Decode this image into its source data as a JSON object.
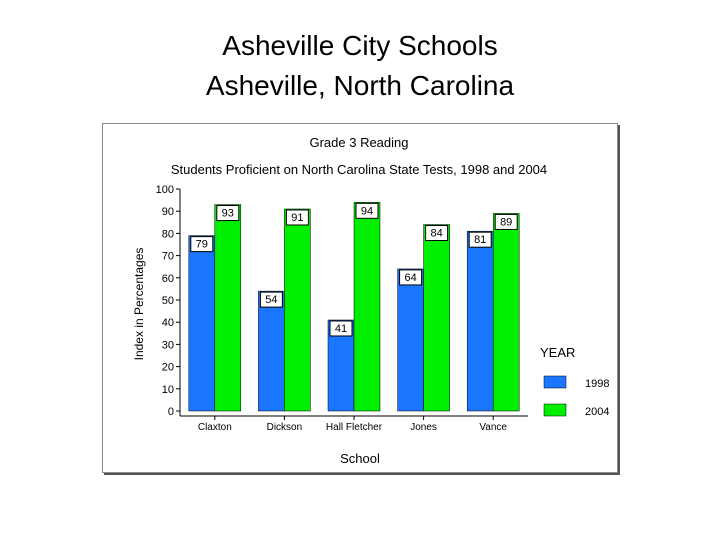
{
  "slide": {
    "title_line1": "Asheville City Schools",
    "title_line2": "Asheville, North Carolina"
  },
  "chart_data": {
    "type": "bar",
    "title": "Grade 3 Reading",
    "subtitle": "Students Proficient on North Carolina State Tests, 1998 and 2004",
    "xlabel": "School",
    "ylabel": "Index in Percentages",
    "categories": [
      "Claxton",
      "Dickson",
      "Hall Fletcher",
      "Jones",
      "Vance"
    ],
    "series": [
      {
        "name": "1998",
        "values": [
          79,
          54,
          41,
          64,
          81
        ],
        "color": "#1a75ff"
      },
      {
        "name": "2004",
        "values": [
          93,
          91,
          94,
          84,
          89
        ],
        "color": "#00ee00"
      }
    ],
    "ylim": [
      0,
      100
    ],
    "yticks": [
      0,
      10,
      20,
      30,
      40,
      50,
      60,
      70,
      80,
      90,
      100
    ],
    "legend_title": "YEAR",
    "legend_position": "right",
    "grid": false
  }
}
